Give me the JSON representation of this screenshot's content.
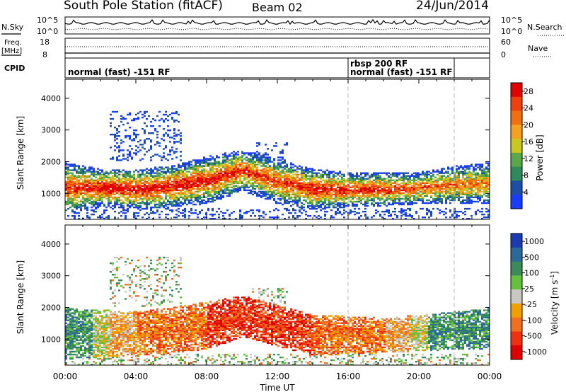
{
  "header": {
    "title": "South Pole Station (fitACF)",
    "beam": "Beam 02",
    "date": "24/Jun/2014"
  },
  "nsky_panel": {
    "left_label": "N.Sky",
    "right_label": "N.Search",
    "left_ticks": [
      "10^5",
      "10^0"
    ],
    "right_ticks": [
      "10^5",
      "10^0"
    ]
  },
  "freq_panel": {
    "left_label_line1": "Freq.",
    "left_label_line2": "[MHz]",
    "right_label": "Nave",
    "left_ticks": [
      "18",
      "8"
    ],
    "right_ticks": [
      "60",
      "0"
    ]
  },
  "cpid_panel": {
    "label": "CPID",
    "segments": [
      {
        "start": 0,
        "end": 16,
        "text": "normal (fast) -151 RF"
      },
      {
        "start": 16,
        "end": 22,
        "text_top": "rbsp 200 RF",
        "text": "normal (fast) -151 RF"
      }
    ]
  },
  "x_axis": {
    "label": "Time UT",
    "ticks": [
      "00:00",
      "04:00",
      "08:00",
      "12:00",
      "16:00",
      "20:00",
      "00:00"
    ]
  },
  "power_panel": {
    "ylabel": "Slant Range [km]",
    "yticks": [
      "1000",
      "2000",
      "3000",
      "4000"
    ],
    "colorbar_label": "Power [dB]",
    "colorbar_ticks": [
      "4",
      "8",
      "12",
      "16",
      "20",
      "24",
      "28"
    ]
  },
  "velocity_panel": {
    "ylabel": "Slant Range [km]",
    "yticks": [
      "1000",
      "2000",
      "3000",
      "4000"
    ],
    "colorbar_label": "Velocity [m s",
    "colorbar_label_sup": "-1",
    "colorbar_label_end": "]",
    "colorbar_ticks": [
      "1000",
      "500",
      "100",
      "25",
      "-25",
      "-100",
      "-500",
      "-1000"
    ]
  },
  "colors": {
    "power_scale": [
      "#1a3cff",
      "#1e4fa8",
      "#2e8a5a",
      "#5aa84a",
      "#c8c820",
      "#f5a020",
      "#f07010",
      "#f04010",
      "#e00000"
    ],
    "velocity_scale": [
      "#1a3cb0",
      "#2a6a9a",
      "#3a8a5a",
      "#66c040",
      "#c8c8c0",
      "#f0a000",
      "#f07020",
      "#f03010",
      "#e00000"
    ]
  },
  "chart_data": [
    {
      "type": "heatmap",
      "title": "Power",
      "x_range_hours": [
        0,
        24
      ],
      "y_range_km": [
        180,
        4600
      ],
      "colorbar": {
        "label": "Power [dB]",
        "range": [
          0,
          30
        ],
        "ticks": [
          4,
          8,
          12,
          16,
          20,
          24,
          28
        ]
      },
      "band_profile": [
        {
          "x_hour": 0,
          "y_low_km": 500,
          "y_high_km": 1800,
          "peak_db": 26
        },
        {
          "x_hour": 2,
          "y_low_km": 700,
          "y_high_km": 1600,
          "peak_db": 28
        },
        {
          "x_hour": 4,
          "y_low_km": 600,
          "y_high_km": 1600,
          "peak_db": 28
        },
        {
          "x_hour": 6,
          "y_low_km": 700,
          "y_high_km": 1700,
          "peak_db": 28
        },
        {
          "x_hour": 8,
          "y_low_km": 800,
          "y_high_km": 2000,
          "peak_db": 28
        },
        {
          "x_hour": 10,
          "y_low_km": 1200,
          "y_high_km": 2200,
          "peak_db": 26
        },
        {
          "x_hour": 12,
          "y_low_km": 800,
          "y_high_km": 1900,
          "peak_db": 24
        },
        {
          "x_hour": 14,
          "y_low_km": 600,
          "y_high_km": 1600,
          "peak_db": 28
        },
        {
          "x_hour": 16,
          "y_low_km": 700,
          "y_high_km": 1500,
          "peak_db": 26
        },
        {
          "x_hour": 18,
          "y_low_km": 700,
          "y_high_km": 1500,
          "peak_db": 26
        },
        {
          "x_hour": 20,
          "y_low_km": 800,
          "y_high_km": 1500,
          "peak_db": 24
        },
        {
          "x_hour": 22,
          "y_low_km": 800,
          "y_high_km": 1700,
          "peak_db": 22
        },
        {
          "x_hour": 24,
          "y_low_km": 800,
          "y_high_km": 1800,
          "peak_db": 20
        }
      ]
    },
    {
      "type": "heatmap",
      "title": "Velocity",
      "x_range_hours": [
        0,
        24
      ],
      "y_range_km": [
        180,
        4600
      ],
      "colorbar": {
        "label": "Velocity [m s-1]",
        "levels": [
          1000,
          500,
          100,
          25,
          -25,
          -100,
          -500,
          -1000
        ]
      },
      "band_profile": [
        {
          "x_hour": 0,
          "y_low_km": 500,
          "y_high_km": 1800,
          "typical_velocity": 100
        },
        {
          "x_hour": 4,
          "y_low_km": 600,
          "y_high_km": 1700,
          "typical_velocity": -100
        },
        {
          "x_hour": 8,
          "y_low_km": 800,
          "y_high_km": 2000,
          "typical_velocity": -500
        },
        {
          "x_hour": 10,
          "y_low_km": 1200,
          "y_high_km": 2200,
          "typical_velocity": -500
        },
        {
          "x_hour": 14,
          "y_low_km": 600,
          "y_high_km": 1600,
          "typical_velocity": -500
        },
        {
          "x_hour": 18,
          "y_low_km": 700,
          "y_high_km": 1500,
          "typical_velocity": -100
        },
        {
          "x_hour": 22,
          "y_low_km": 800,
          "y_high_km": 1700,
          "typical_velocity": 100
        },
        {
          "x_hour": 24,
          "y_low_km": 800,
          "y_high_km": 1800,
          "typical_velocity": 25
        }
      ]
    }
  ]
}
